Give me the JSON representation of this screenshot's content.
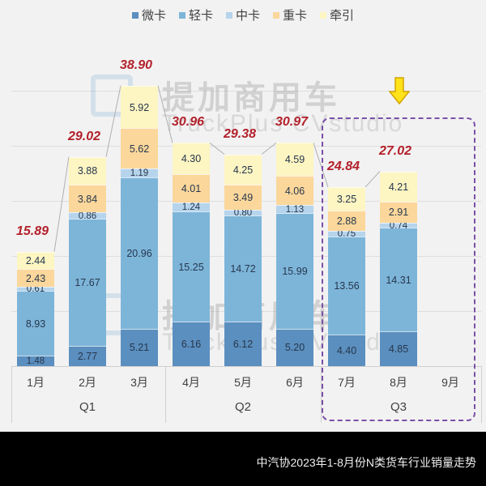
{
  "legend": [
    {
      "label": "微卡",
      "color": "#5b8fbf"
    },
    {
      "label": "轻卡",
      "color": "#7db5d9"
    },
    {
      "label": "中卡",
      "color": "#b6d4ec"
    },
    {
      "label": "重卡",
      "color": "#fbd79b"
    },
    {
      "label": "牵引",
      "color": "#fdf5c2"
    }
  ],
  "watermark": {
    "main": "提加商用车",
    "sub": "TruckPlus CVstudio"
  },
  "footer": {
    "caption": "中汽协2023年1-8月份N类货车行业销量走势"
  },
  "months": [
    {
      "label": "1月",
      "total": "15.89",
      "seg": [
        "1.48",
        "8.93",
        "0.61",
        "2.43",
        "2.44"
      ]
    },
    {
      "label": "2月",
      "total": "29.02",
      "seg": [
        "2.77",
        "17.67",
        "0.86",
        "3.84",
        "3.88"
      ]
    },
    {
      "label": "3月",
      "total": "38.90",
      "seg": [
        "5.21",
        "20.96",
        "1.19",
        "5.62",
        "5.92"
      ]
    },
    {
      "label": "4月",
      "total": "30.96",
      "seg": [
        "6.16",
        "15.25",
        "1.24",
        "4.01",
        "4.30"
      ]
    },
    {
      "label": "5月",
      "total": "29.38",
      "seg": [
        "6.12",
        "14.72",
        "0.80",
        "3.49",
        "4.25"
      ]
    },
    {
      "label": "6月",
      "total": "30.97",
      "seg": [
        "5.20",
        "15.99",
        "1.13",
        "4.06",
        "4.59"
      ]
    },
    {
      "label": "7月",
      "total": "24.84",
      "seg": [
        "4.40",
        "13.56",
        "0.75",
        "2.88",
        "3.25"
      ]
    },
    {
      "label": "8月",
      "total": "27.02",
      "seg": [
        "4.85",
        "14.31",
        "0.74",
        "2.91",
        "4.21"
      ]
    },
    {
      "label": "9月",
      "total": "",
      "seg": []
    }
  ],
  "quarters": [
    "Q1",
    "Q2",
    "Q3"
  ],
  "chart_data": {
    "type": "bar",
    "stacked": true,
    "title": "中汽协2023年1-8月份N类货车行业销量走势",
    "categories": [
      "1月",
      "2月",
      "3月",
      "4月",
      "5月",
      "6月",
      "7月",
      "8月",
      "9月"
    ],
    "category_groups": [
      {
        "label": "Q1",
        "members": [
          "1月",
          "2月",
          "3月"
        ]
      },
      {
        "label": "Q2",
        "members": [
          "4月",
          "5月",
          "6月"
        ]
      },
      {
        "label": "Q3",
        "members": [
          "7月",
          "8月",
          "9月"
        ]
      }
    ],
    "series": [
      {
        "name": "微卡",
        "values": [
          1.48,
          2.77,
          5.21,
          6.16,
          6.12,
          5.2,
          4.4,
          4.85,
          null
        ]
      },
      {
        "name": "轻卡",
        "values": [
          8.93,
          17.67,
          20.96,
          15.25,
          14.72,
          15.99,
          13.56,
          14.31,
          null
        ]
      },
      {
        "name": "中卡",
        "values": [
          0.61,
          0.86,
          1.19,
          1.24,
          0.8,
          1.13,
          0.75,
          0.74,
          null
        ]
      },
      {
        "name": "重卡",
        "values": [
          2.43,
          3.84,
          5.62,
          4.01,
          3.49,
          4.06,
          2.88,
          2.91,
          null
        ]
      },
      {
        "name": "牵引",
        "values": [
          2.44,
          3.88,
          5.92,
          4.3,
          4.25,
          4.59,
          3.25,
          4.21,
          null
        ]
      }
    ],
    "totals": [
      15.89,
      29.02,
      38.9,
      30.96,
      29.38,
      30.97,
      24.84,
      27.02,
      null
    ],
    "xlabel": "",
    "ylabel": "",
    "ylim": [
      0,
      40
    ],
    "grid": true,
    "legend_position": "top",
    "annotations": [
      "Q3 highlighted with dashed purple box",
      "yellow down arrow above 8月"
    ]
  }
}
